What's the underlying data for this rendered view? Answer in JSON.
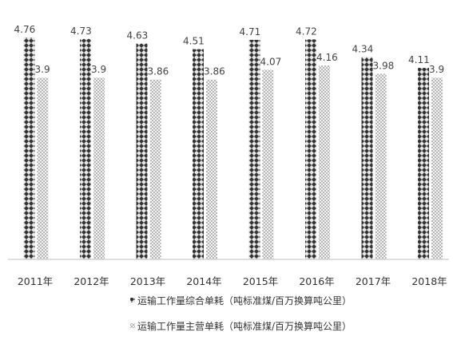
{
  "chart_data": {
    "type": "bar",
    "categories": [
      "2011年",
      "2012年",
      "2013年",
      "2014年",
      "2015年",
      "2016年",
      "2017年",
      "2018年"
    ],
    "series": [
      {
        "name": "运输工作量综合单耗（吨标准煤/百万换算吨公里）",
        "values": [
          4.76,
          4.73,
          4.63,
          4.51,
          4.71,
          4.72,
          4.34,
          4.11
        ],
        "labels": [
          "4.76",
          "4.73",
          "4.63",
          "4.51",
          "4.71",
          "4.72",
          "4.34",
          "4.11"
        ],
        "color": "#4a4a4a"
      },
      {
        "name": "运输工作量主营单耗（吨标准煤/百万换算吨公里）",
        "values": [
          3.9,
          3.9,
          3.86,
          3.86,
          4.07,
          4.16,
          3.98,
          3.9
        ],
        "labels": [
          "3.9",
          "3.9",
          "3.86",
          "3.86",
          "4.07",
          "4.16",
          "3.98",
          "3.9"
        ],
        "color": "#b8b8b8"
      }
    ],
    "ylim": [
      0,
      4.76
    ],
    "grid": false,
    "legend_position": "bottom"
  }
}
